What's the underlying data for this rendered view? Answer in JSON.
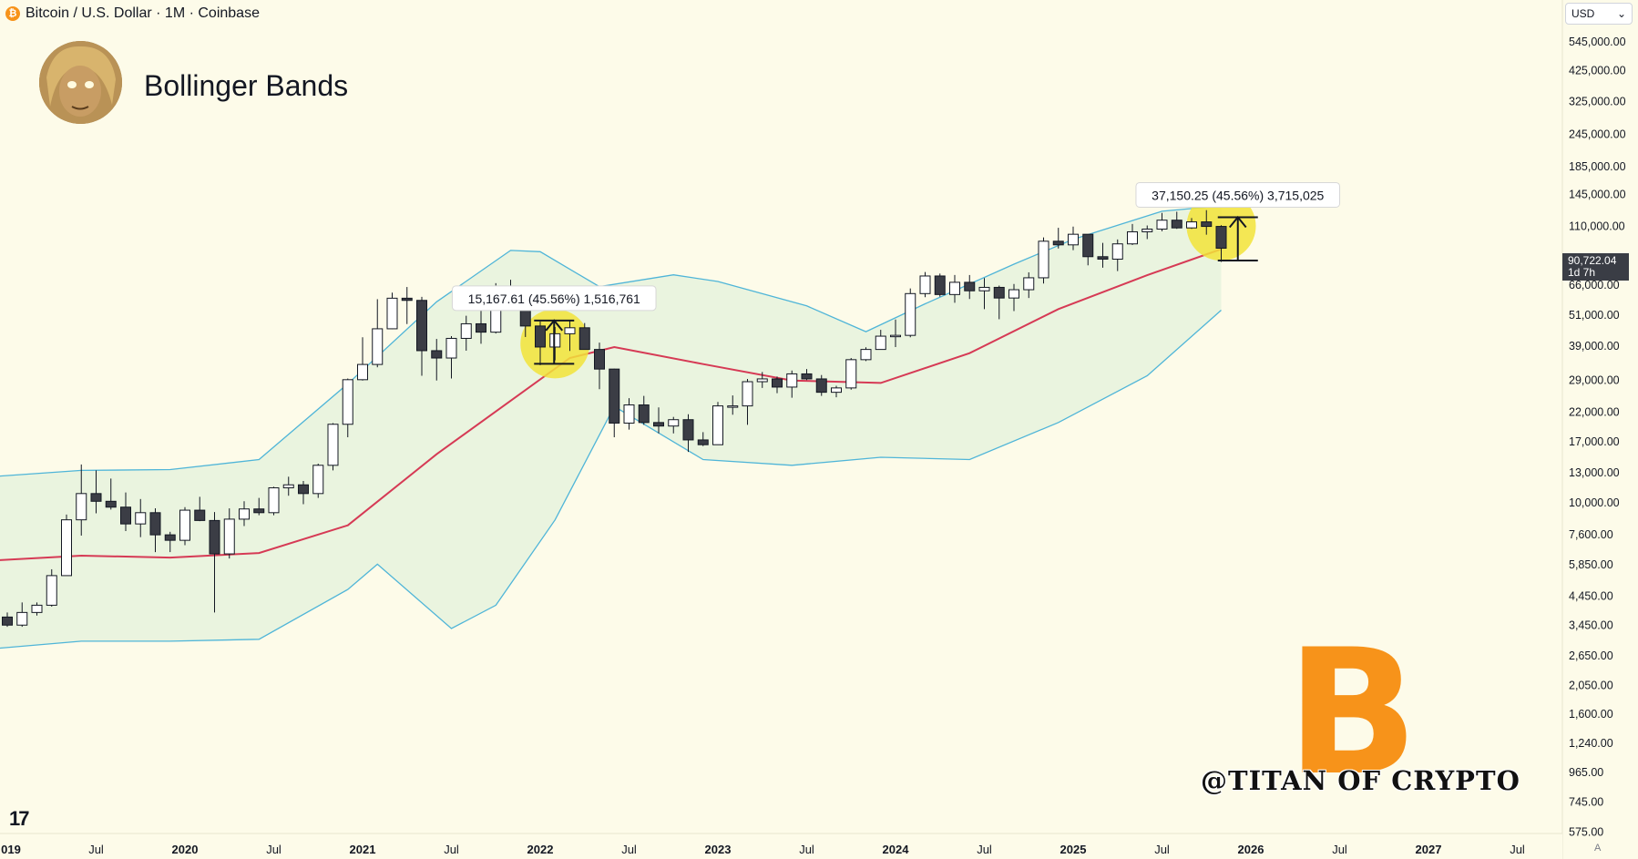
{
  "header": {
    "symbol_icon": "bitcoin-icon",
    "title": "Bitcoin / U.S. Dollar · 1M · Coinbase"
  },
  "overlay": {
    "indicator_title": "Bollinger Bands",
    "watermark": "@TITAN OF CRYPTO",
    "logo_glyph": "B",
    "tv_logo": "17"
  },
  "price_scale": {
    "currency": "USD",
    "current_price": "90,722.04",
    "countdown": "1d 7h",
    "bottom_letter": "A"
  },
  "chart_data": {
    "type": "candlestick",
    "title": "Bitcoin / U.S. Dollar · 1M · Coinbase",
    "interval": "1M",
    "exchange": "Coinbase",
    "scale": "log",
    "ylim": [
      575,
      730000
    ],
    "y_ticks": [
      575,
      745,
      965,
      1240,
      1600,
      2050,
      2650,
      3450,
      4450,
      5850,
      7600,
      10000,
      13000,
      17000,
      22000,
      29000,
      39000,
      51000,
      66000,
      110000,
      145000,
      185000,
      245000,
      325000,
      425000,
      545000
    ],
    "y_tick_labels": [
      "575.00",
      "745.00",
      "965.00",
      "1,240.00",
      "1,600.00",
      "2,050.00",
      "2,650.00",
      "3,450.00",
      "4,450.00",
      "5,850.00",
      "7,600.00",
      "10,000.00",
      "13,000.00",
      "17,000.00",
      "22,000.00",
      "29,000.00",
      "39,000.00",
      "51,000.00",
      "66,000.00",
      "110,000.00",
      "145,000.00",
      "185,000.00",
      "245,000.00",
      "325,000.00",
      "425,000.00",
      "545,000.00"
    ],
    "x_labels": [
      {
        "date": "2019-01",
        "label": "019",
        "bold": true
      },
      {
        "date": "2019-07",
        "label": "Jul",
        "bold": false
      },
      {
        "date": "2020-01",
        "label": "2020",
        "bold": true
      },
      {
        "date": "2020-07",
        "label": "Jul",
        "bold": false
      },
      {
        "date": "2021-01",
        "label": "2021",
        "bold": true
      },
      {
        "date": "2021-07",
        "label": "Jul",
        "bold": false
      },
      {
        "date": "2022-01",
        "label": "2022",
        "bold": true
      },
      {
        "date": "2022-07",
        "label": "Jul",
        "bold": false
      },
      {
        "date": "2023-01",
        "label": "2023",
        "bold": true
      },
      {
        "date": "2023-07",
        "label": "Jul",
        "bold": false
      },
      {
        "date": "2024-01",
        "label": "2024",
        "bold": true
      },
      {
        "date": "2024-07",
        "label": "Jul",
        "bold": false
      },
      {
        "date": "2025-01",
        "label": "2025",
        "bold": true
      },
      {
        "date": "2025-07",
        "label": "Jul",
        "bold": false
      },
      {
        "date": "2026-01",
        "label": "2026",
        "bold": true
      },
      {
        "date": "2026-07",
        "label": "Jul",
        "bold": false
      },
      {
        "date": "2027-01",
        "label": "2027",
        "bold": true
      },
      {
        "date": "2027-07",
        "label": "Jul",
        "bold": false
      }
    ],
    "candles": [
      {
        "date": "2019-01",
        "o": 3700,
        "h": 3850,
        "l": 3400,
        "c": 3450
      },
      {
        "date": "2019-02",
        "o": 3450,
        "h": 4200,
        "l": 3400,
        "c": 3850
      },
      {
        "date": "2019-03",
        "o": 3850,
        "h": 4200,
        "l": 3750,
        "c": 4100
      },
      {
        "date": "2019-04",
        "o": 4100,
        "h": 5600,
        "l": 4050,
        "c": 5300
      },
      {
        "date": "2019-05",
        "o": 5300,
        "h": 9000,
        "l": 5300,
        "c": 8600
      },
      {
        "date": "2019-06",
        "o": 8600,
        "h": 13900,
        "l": 7500,
        "c": 10800
      },
      {
        "date": "2019-07",
        "o": 10800,
        "h": 13200,
        "l": 9100,
        "c": 10100
      },
      {
        "date": "2019-08",
        "o": 10100,
        "h": 12300,
        "l": 9400,
        "c": 9600
      },
      {
        "date": "2019-09",
        "o": 9600,
        "h": 10900,
        "l": 7800,
        "c": 8300
      },
      {
        "date": "2019-10",
        "o": 8300,
        "h": 10300,
        "l": 7400,
        "c": 9150
      },
      {
        "date": "2019-11",
        "o": 9150,
        "h": 9500,
        "l": 6500,
        "c": 7550
      },
      {
        "date": "2019-12",
        "o": 7550,
        "h": 7750,
        "l": 6500,
        "c": 7200
      },
      {
        "date": "2020-01",
        "o": 7200,
        "h": 9600,
        "l": 6900,
        "c": 9350
      },
      {
        "date": "2020-02",
        "o": 9350,
        "h": 10500,
        "l": 8500,
        "c": 8550
      },
      {
        "date": "2020-03",
        "o": 8550,
        "h": 9200,
        "l": 3850,
        "c": 6400
      },
      {
        "date": "2020-04",
        "o": 6400,
        "h": 9500,
        "l": 6150,
        "c": 8650
      },
      {
        "date": "2020-05",
        "o": 8650,
        "h": 10100,
        "l": 8150,
        "c": 9450
      },
      {
        "date": "2020-06",
        "o": 9450,
        "h": 10400,
        "l": 8950,
        "c": 9150
      },
      {
        "date": "2020-07",
        "o": 9150,
        "h": 11450,
        "l": 8950,
        "c": 11350
      },
      {
        "date": "2020-08",
        "o": 11350,
        "h": 12500,
        "l": 10600,
        "c": 11650
      },
      {
        "date": "2020-09",
        "o": 11650,
        "h": 12050,
        "l": 9850,
        "c": 10800
      },
      {
        "date": "2020-10",
        "o": 10800,
        "h": 14000,
        "l": 10400,
        "c": 13800
      },
      {
        "date": "2020-11",
        "o": 13800,
        "h": 19900,
        "l": 13200,
        "c": 19700
      },
      {
        "date": "2020-12",
        "o": 19700,
        "h": 29300,
        "l": 17600,
        "c": 29000
      },
      {
        "date": "2021-01",
        "o": 29000,
        "h": 41900,
        "l": 28800,
        "c": 33100
      },
      {
        "date": "2021-02",
        "o": 33100,
        "h": 58300,
        "l": 32300,
        "c": 45100
      },
      {
        "date": "2021-03",
        "o": 45100,
        "h": 61700,
        "l": 45000,
        "c": 58800
      },
      {
        "date": "2021-04",
        "o": 58800,
        "h": 64800,
        "l": 47000,
        "c": 57700
      },
      {
        "date": "2021-05",
        "o": 57700,
        "h": 59500,
        "l": 30000,
        "c": 37300
      },
      {
        "date": "2021-06",
        "o": 37300,
        "h": 41300,
        "l": 28800,
        "c": 35000
      },
      {
        "date": "2021-07",
        "o": 35000,
        "h": 42300,
        "l": 29300,
        "c": 41500
      },
      {
        "date": "2021-08",
        "o": 41500,
        "h": 50500,
        "l": 37300,
        "c": 47100
      },
      {
        "date": "2021-09",
        "o": 47100,
        "h": 52900,
        "l": 39600,
        "c": 43800
      },
      {
        "date": "2021-10",
        "o": 43800,
        "h": 67000,
        "l": 43300,
        "c": 61300
      },
      {
        "date": "2021-11",
        "o": 61300,
        "h": 69000,
        "l": 53300,
        "c": 57000
      },
      {
        "date": "2021-12",
        "o": 57000,
        "h": 59100,
        "l": 42000,
        "c": 46200
      },
      {
        "date": "2022-01",
        "o": 46200,
        "h": 48000,
        "l": 32900,
        "c": 38500
      },
      {
        "date": "2022-02",
        "o": 38500,
        "h": 45800,
        "l": 34300,
        "c": 43200
      },
      {
        "date": "2022-03",
        "o": 43200,
        "h": 48200,
        "l": 37200,
        "c": 45500
      },
      {
        "date": "2022-04",
        "o": 45500,
        "h": 47400,
        "l": 37700,
        "c": 37700
      },
      {
        "date": "2022-05",
        "o": 37700,
        "h": 40000,
        "l": 26700,
        "c": 31800
      },
      {
        "date": "2022-06",
        "o": 31800,
        "h": 31900,
        "l": 17600,
        "c": 19900
      },
      {
        "date": "2022-07",
        "o": 19900,
        "h": 24700,
        "l": 18800,
        "c": 23300
      },
      {
        "date": "2022-08",
        "o": 23300,
        "h": 25200,
        "l": 19600,
        "c": 20000
      },
      {
        "date": "2022-09",
        "o": 20000,
        "h": 22800,
        "l": 18200,
        "c": 19400
      },
      {
        "date": "2022-10",
        "o": 19400,
        "h": 21000,
        "l": 18200,
        "c": 20500
      },
      {
        "date": "2022-11",
        "o": 20500,
        "h": 21500,
        "l": 15500,
        "c": 17200
      },
      {
        "date": "2022-12",
        "o": 17200,
        "h": 18400,
        "l": 16300,
        "c": 16500
      },
      {
        "date": "2023-01",
        "o": 16500,
        "h": 23900,
        "l": 16500,
        "c": 23100
      },
      {
        "date": "2023-02",
        "o": 23100,
        "h": 25300,
        "l": 21400,
        "c": 23100
      },
      {
        "date": "2023-03",
        "o": 23100,
        "h": 29200,
        "l": 19600,
        "c": 28500
      },
      {
        "date": "2023-04",
        "o": 28500,
        "h": 31000,
        "l": 27000,
        "c": 29200
      },
      {
        "date": "2023-05",
        "o": 29200,
        "h": 29800,
        "l": 25800,
        "c": 27200
      },
      {
        "date": "2023-06",
        "o": 27200,
        "h": 31400,
        "l": 24800,
        "c": 30500
      },
      {
        "date": "2023-07",
        "o": 30500,
        "h": 31800,
        "l": 28900,
        "c": 29200
      },
      {
        "date": "2023-08",
        "o": 29200,
        "h": 30200,
        "l": 25200,
        "c": 26000
      },
      {
        "date": "2023-09",
        "o": 26000,
        "h": 27500,
        "l": 24900,
        "c": 27000
      },
      {
        "date": "2023-10",
        "o": 27000,
        "h": 35000,
        "l": 26600,
        "c": 34500
      },
      {
        "date": "2023-11",
        "o": 34500,
        "h": 38400,
        "l": 34100,
        "c": 37700
      },
      {
        "date": "2023-12",
        "o": 37700,
        "h": 44700,
        "l": 37600,
        "c": 42300
      },
      {
        "date": "2024-01",
        "o": 42300,
        "h": 48900,
        "l": 38500,
        "c": 42600
      },
      {
        "date": "2024-02",
        "o": 42600,
        "h": 64000,
        "l": 41900,
        "c": 61200
      },
      {
        "date": "2024-03",
        "o": 61200,
        "h": 73800,
        "l": 59300,
        "c": 71300
      },
      {
        "date": "2024-04",
        "o": 71300,
        "h": 72800,
        "l": 59600,
        "c": 60700
      },
      {
        "date": "2024-05",
        "o": 60700,
        "h": 71900,
        "l": 56500,
        "c": 67500
      },
      {
        "date": "2024-06",
        "o": 67500,
        "h": 71900,
        "l": 58400,
        "c": 62700
      },
      {
        "date": "2024-07",
        "o": 62700,
        "h": 70000,
        "l": 53500,
        "c": 64600
      },
      {
        "date": "2024-08",
        "o": 64600,
        "h": 65600,
        "l": 49000,
        "c": 58900
      },
      {
        "date": "2024-09",
        "o": 58900,
        "h": 66500,
        "l": 52600,
        "c": 63300
      },
      {
        "date": "2024-10",
        "o": 63300,
        "h": 73600,
        "l": 58900,
        "c": 70200
      },
      {
        "date": "2024-11",
        "o": 70200,
        "h": 99600,
        "l": 66800,
        "c": 96400
      },
      {
        "date": "2024-12",
        "o": 96400,
        "h": 108300,
        "l": 90500,
        "c": 93400
      },
      {
        "date": "2025-01",
        "o": 93400,
        "h": 109400,
        "l": 89200,
        "c": 102400
      },
      {
        "date": "2025-02",
        "o": 102400,
        "h": 102500,
        "l": 78200,
        "c": 84300
      },
      {
        "date": "2025-03",
        "o": 84300,
        "h": 95000,
        "l": 76600,
        "c": 82500
      },
      {
        "date": "2025-04",
        "o": 82500,
        "h": 97900,
        "l": 74400,
        "c": 94200
      },
      {
        "date": "2025-05",
        "o": 94200,
        "h": 111900,
        "l": 93300,
        "c": 104600
      },
      {
        "date": "2025-06",
        "o": 104600,
        "h": 110500,
        "l": 98200,
        "c": 107100
      },
      {
        "date": "2025-07",
        "o": 107100,
        "h": 123200,
        "l": 105100,
        "c": 115700
      },
      {
        "date": "2025-08",
        "o": 115700,
        "h": 124500,
        "l": 107300,
        "c": 108200
      },
      {
        "date": "2025-09",
        "o": 108200,
        "h": 117900,
        "l": 107300,
        "c": 114000
      },
      {
        "date": "2025-10",
        "o": 114000,
        "h": 126200,
        "l": 102000,
        "c": 109600
      },
      {
        "date": "2025-11",
        "o": 109600,
        "h": 110700,
        "l": 80600,
        "c": 90722
      }
    ],
    "basis": {
      "name": "Basis",
      "color": "#d63a55",
      "points": [
        [
          "2018-11",
          6000
        ],
        [
          "2019-06",
          6300
        ],
        [
          "2019-12",
          6200
        ],
        [
          "2020-06",
          6450
        ],
        [
          "2020-12",
          8200
        ],
        [
          "2021-06",
          15200
        ],
        [
          "2021-12",
          26500
        ],
        [
          "2022-03",
          35000
        ],
        [
          "2022-06",
          38500
        ],
        [
          "2022-12",
          33200
        ],
        [
          "2023-06",
          28800
        ],
        [
          "2023-12",
          28200
        ],
        [
          "2024-06",
          36500
        ],
        [
          "2024-12",
          53500
        ],
        [
          "2025-06",
          71800
        ],
        [
          "2025-11",
          90000
        ]
      ]
    },
    "upper_band": {
      "name": "Upper",
      "color": "#4fb5d8",
      "points": [
        [
          "2018-11",
          12400
        ],
        [
          "2019-06",
          13200
        ],
        [
          "2019-12",
          13300
        ],
        [
          "2020-06",
          14500
        ],
        [
          "2020-12",
          28000
        ],
        [
          "2021-06",
          57000
        ],
        [
          "2021-11",
          89000
        ],
        [
          "2022-01",
          88000
        ],
        [
          "2022-05",
          65000
        ],
        [
          "2022-10",
          72000
        ],
        [
          "2023-01",
          68000
        ],
        [
          "2023-07",
          55000
        ],
        [
          "2023-11",
          44000
        ],
        [
          "2024-03",
          56000
        ],
        [
          "2024-09",
          79000
        ],
        [
          "2025-01",
          98000
        ],
        [
          "2025-07",
          125000
        ],
        [
          "2025-11",
          131000
        ]
      ]
    },
    "lower_band": {
      "name": "Lower",
      "color": "#4fb5d8",
      "points": [
        [
          "2018-11",
          2780
        ],
        [
          "2019-06",
          3000
        ],
        [
          "2019-12",
          3000
        ],
        [
          "2020-06",
          3050
        ],
        [
          "2020-12",
          4700
        ],
        [
          "2021-02",
          5850
        ],
        [
          "2021-07",
          3350
        ],
        [
          "2021-10",
          4100
        ],
        [
          "2022-02",
          8600
        ],
        [
          "2022-06",
          23000
        ],
        [
          "2022-12",
          14500
        ],
        [
          "2023-06",
          13800
        ],
        [
          "2023-12",
          14800
        ],
        [
          "2024-06",
          14500
        ],
        [
          "2024-12",
          20000
        ],
        [
          "2025-06",
          30000
        ],
        [
          "2025-11",
          53000
        ]
      ]
    },
    "band_fill": "#c5e8cf",
    "annotations": [
      {
        "text": "15,167.61 (45.56%) 1,516,761",
        "date": "2022-02",
        "y_low": 33300,
        "y_high": 48470,
        "highlight_date": "2022-02",
        "highlight_price": 39600
      },
      {
        "text": "37,150.25 (45.56%) 3,715,025",
        "date": "2025-12",
        "y_low": 81550,
        "y_high": 118700,
        "highlight_date": "2025-11",
        "highlight_price": 110000
      }
    ],
    "up_color": "#ffffff",
    "down_color": "#3b3d45",
    "grid": false,
    "legend": "none"
  }
}
